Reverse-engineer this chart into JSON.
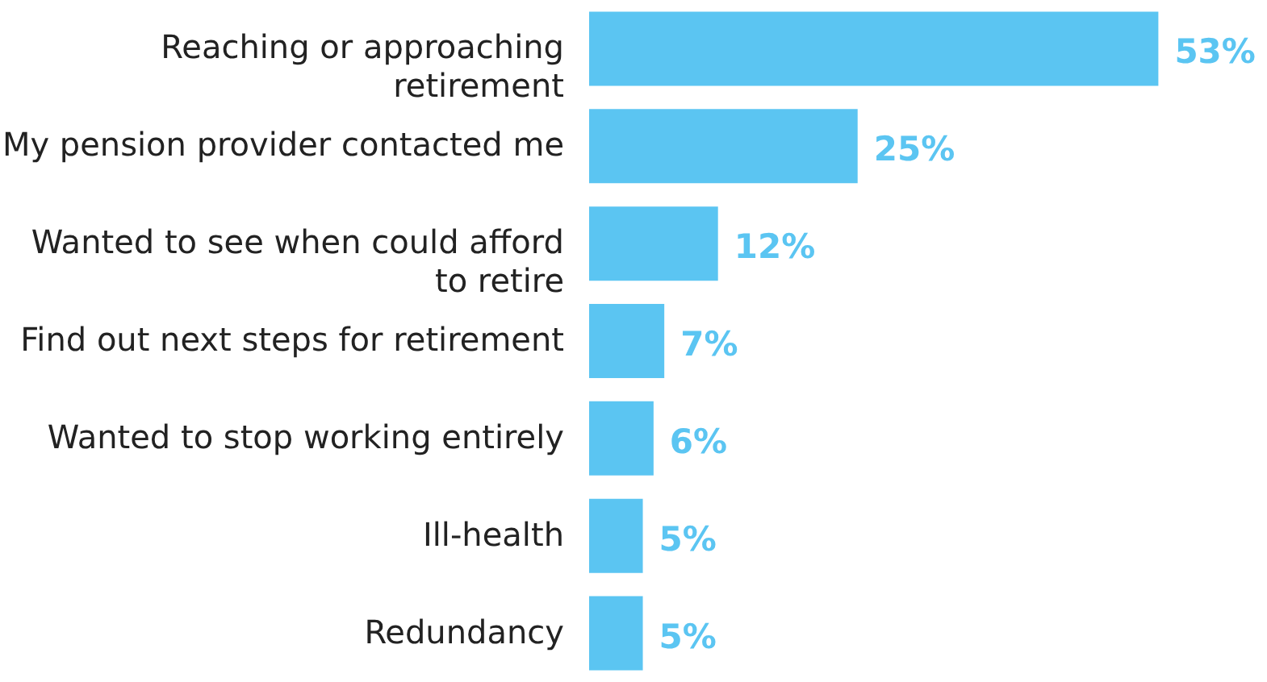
{
  "chart_data": {
    "type": "bar",
    "orientation": "horizontal",
    "categories": [
      "Reaching or approaching\nretirement",
      "My pension provider contacted me",
      "Wanted to see when could afford\nto retire",
      "Find out next steps for retirement",
      "Wanted to stop working entirely",
      "Ill-health",
      "Redundancy"
    ],
    "values": [
      53,
      25,
      12,
      7,
      6,
      5,
      5
    ],
    "value_labels": [
      "53%",
      "25%",
      "12%",
      "7%",
      "6%",
      "5%",
      "5%"
    ],
    "color": "#5bc5f2"
  }
}
